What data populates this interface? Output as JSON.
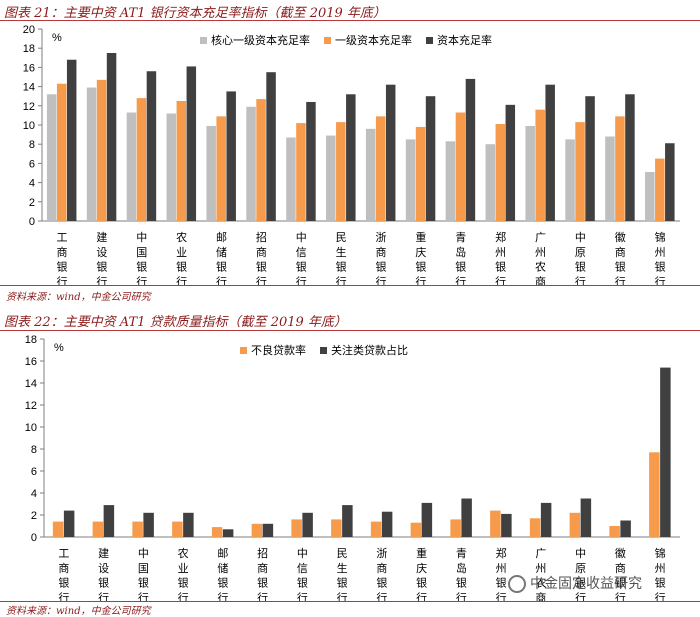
{
  "figure1": {
    "title": "图表 21：主要中资 AT1 银行资本充足率指标（截至 2019 年底）",
    "source": "资料来源：wind，中金公司研究"
  },
  "figure2": {
    "title": "图表 22：主要中资 AT1 贷款质量指标（截至 2019 年底）",
    "source": "资料来源：wind，中金公司研究"
  },
  "watermark": "中金固定收益研究",
  "chart_data": [
    {
      "type": "bar",
      "unit_label": "%",
      "categories": [
        "工商银行",
        "建设银行",
        "中国银行",
        "农业银行",
        "邮储银行",
        "招商银行",
        "中信银行",
        "民生银行",
        "浙商银行",
        "重庆银行",
        "青岛银行",
        "郑州银行",
        "广州农商行",
        "中原银行",
        "徽商银行",
        "锦州银行"
      ],
      "series": [
        {
          "name": "核心一级资本充足率",
          "color": "#bfbfbf",
          "values": [
            13.2,
            13.9,
            11.3,
            11.2,
            9.9,
            11.9,
            8.7,
            8.9,
            9.6,
            8.5,
            8.3,
            8.0,
            9.9,
            8.5,
            8.8,
            5.1
          ]
        },
        {
          "name": "一级资本充足率",
          "color": "#f59b4b",
          "values": [
            14.3,
            14.7,
            12.8,
            12.5,
            10.9,
            12.7,
            10.2,
            10.3,
            10.9,
            9.8,
            11.3,
            10.1,
            11.6,
            10.3,
            10.9,
            6.5
          ]
        },
        {
          "name": "资本充足率",
          "color": "#404040",
          "values": [
            16.8,
            17.5,
            15.6,
            16.1,
            13.5,
            15.5,
            12.4,
            13.2,
            14.2,
            13.0,
            14.8,
            12.1,
            14.2,
            13.0,
            13.2,
            8.1
          ]
        }
      ],
      "ylim": [
        0,
        20
      ],
      "yticks": [
        0,
        2,
        4,
        6,
        8,
        10,
        12,
        14,
        16,
        18,
        20
      ],
      "grid": false,
      "legend": "top-right"
    },
    {
      "type": "bar",
      "unit_label": "%",
      "categories": [
        "工商银行",
        "建设银行",
        "中国银行",
        "农业银行",
        "邮储银行",
        "招商银行",
        "中信银行",
        "民生银行",
        "浙商银行",
        "重庆银行",
        "青岛银行",
        "郑州银行",
        "广州农商行",
        "中原银行",
        "徽商银行",
        "锦州银行"
      ],
      "series": [
        {
          "name": "不良贷款率",
          "color": "#f59b4b",
          "values": [
            1.4,
            1.4,
            1.4,
            1.4,
            0.9,
            1.2,
            1.6,
            1.6,
            1.4,
            1.3,
            1.6,
            2.4,
            1.7,
            2.2,
            1.0,
            7.7
          ]
        },
        {
          "name": "关注类贷款占比",
          "color": "#404040",
          "values": [
            2.4,
            2.9,
            2.2,
            2.2,
            0.7,
            1.2,
            2.2,
            2.9,
            2.3,
            3.1,
            3.5,
            2.1,
            3.1,
            3.5,
            1.5,
            15.4
          ]
        }
      ],
      "ylim": [
        0,
        18
      ],
      "yticks": [
        0,
        2,
        4,
        6,
        8,
        10,
        12,
        14,
        16,
        18
      ],
      "grid": false,
      "legend": "top-center"
    }
  ]
}
